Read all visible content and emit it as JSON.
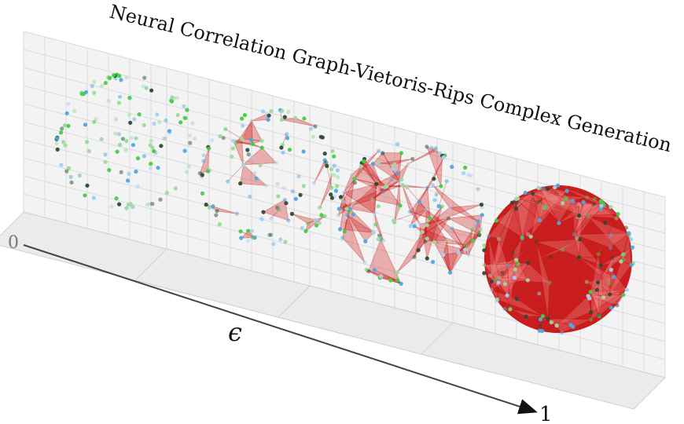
{
  "figure": {
    "title": "Neural Correlation Graph-Vietoris-Rips Complex Generation",
    "axis_start": "0",
    "axis_end": "1",
    "axis_label": "ϵ"
  }
}
